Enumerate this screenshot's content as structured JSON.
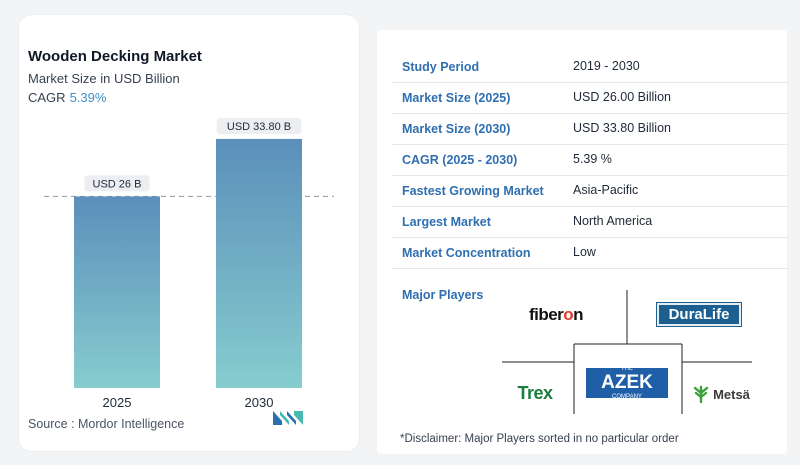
{
  "header": {
    "title": "Wooden Decking Market",
    "subtitle": "Market Size in USD Billion",
    "cagr_label": "CAGR",
    "cagr_value": "5.39%"
  },
  "chart_data": {
    "type": "bar",
    "categories": [
      "2025",
      "2030"
    ],
    "values": [
      26.0,
      33.8
    ],
    "data_labels": [
      "USD 26 B",
      "USD 33.80 B"
    ],
    "title": "Wooden Decking Market",
    "ylabel": "Market Size in USD Billion",
    "ylim": [
      0,
      38
    ],
    "reference_line": 26.0,
    "grid": false,
    "bar_color_top": "#5b8fba",
    "bar_color_bottom": "#86cdcf"
  },
  "source": "Source : Mordor Intelligence",
  "info": {
    "rows": [
      {
        "label": "Study Period",
        "value": "2019 - 2030"
      },
      {
        "label": "Market Size (2025)",
        "value": "USD 26.00 Billion"
      },
      {
        "label": "Market Size (2030)",
        "value": "USD 33.80 Billion"
      },
      {
        "label": "CAGR (2025 - 2030)",
        "value": "5.39 %"
      },
      {
        "label": "Fastest Growing Market",
        "value": "Asia-Pacific"
      },
      {
        "label": "Largest Market",
        "value": "North America"
      },
      {
        "label": "Market Concentration",
        "value": "Low"
      }
    ]
  },
  "players": {
    "label": "Major Players",
    "fiberon": "fiber",
    "fiberon_o": "o",
    "fiberon_n": "n",
    "duralife": "DuraLife",
    "trex": "Trex",
    "azek_the": "THE",
    "azek": "AZEK",
    "azek_company": "COMPANY",
    "metsa": "Metsä"
  },
  "disclaimer": "*Disclaimer: Major Players sorted in no particular order",
  "colors": {
    "accent": "#2f6fb0",
    "cagr": "#3f8fc4"
  }
}
